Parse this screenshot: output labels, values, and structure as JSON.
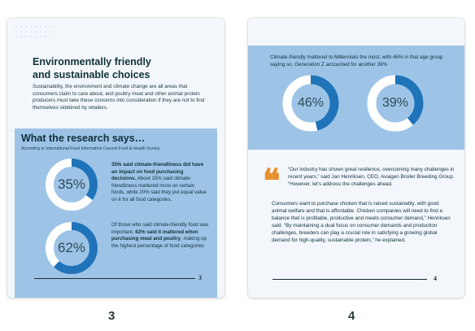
{
  "page3": {
    "title_line1": "Environmentally friendly",
    "title_line2": "and sustainable choices",
    "intro": "Sustainability, the environment and climate change are all areas that consumers claim to care about, and poultry meat and other animal protein producers must take these concerns into consideration if they are not to find themselves sidelined by retailers.",
    "research_title": "What the research says…",
    "research_source": "According to International Food Information Council Food & Health Survey",
    "stat1": {
      "value": 35,
      "label": "35%",
      "bold": "35% said climate-friendliness did have an impact on food purchasing decisions.",
      "text": " About 15% said climate-friendliness mattered more on certain foods, while 20% said they put equal value on it for all food categories."
    },
    "stat2": {
      "value": 62,
      "label": "62%",
      "text_pre": "Of those who said climate-friendly food was important, ",
      "bold": "62% said it mattered when purchasing meat and poultry",
      "text_post": ", making up the highest percentage of food categories"
    },
    "page_number": "3",
    "thumb_label": "3"
  },
  "page4": {
    "caption": "Climate-friendly mattered to Millennials the most, with 46% in that age group saying so, Generation Z accounted for another 39%",
    "ring1": {
      "value": 46,
      "label": "46%"
    },
    "ring2": {
      "value": 39,
      "label": "39%"
    },
    "quote": "“Our industry has shown great resilience, overcoming many challenges in recent years,” said Jan Henriksen, CEO, Aviagen Broiler Breeding Group. “However, let’s address the challenges ahead.",
    "body": "Consumers want to purchase chicken that is raised sustainably, with good animal welfare and that is affordable. Chicken companies will need to find a balance that is profitable, productive and meets consumer demand,” Henriksen said. “By maintaining a dual focus on consumer demands and production challenges, breeders can play a crucial role in satisfying a growing global demand for high-quality, sustainable protein,” he explained.",
    "page_number": "4",
    "thumb_label": "4"
  },
  "colors": {
    "ring_fill": "#1f73b8",
    "ring_track": "#ffffff",
    "panel": "#9dc4e6",
    "quote_accent": "#e8902a"
  }
}
